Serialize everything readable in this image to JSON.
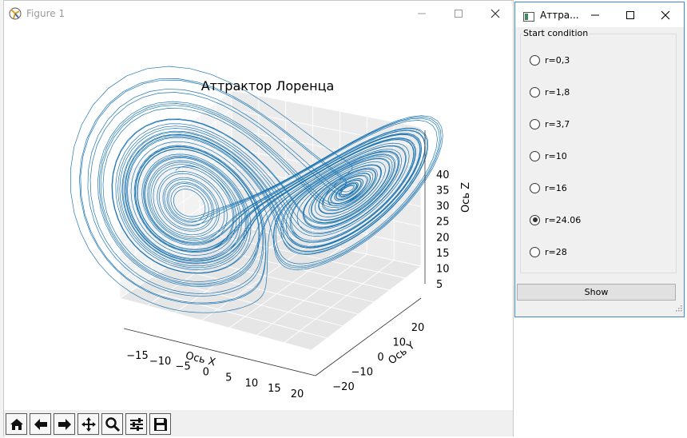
{
  "figure_window": {
    "title": "Figure 1",
    "controls": [
      "minimize-icon",
      "maximize-icon",
      "close-icon"
    ]
  },
  "plot": {
    "title": "Аттрактор Лоренца",
    "xlabel": "Ось X",
    "ylabel": "Ось Y",
    "zlabel": "Ось Z",
    "x_ticks": [
      "−15",
      "−10",
      "−5",
      "0",
      "5",
      "10",
      "15",
      "20"
    ],
    "y_ticks": [
      "20",
      "10",
      "0",
      "−10",
      "−20"
    ],
    "z_ticks": [
      "40",
      "35",
      "30",
      "25",
      "20",
      "15",
      "10",
      "5"
    ],
    "line_color": "#1f77b4"
  },
  "toolbar": {
    "buttons": [
      "home-icon",
      "back-icon",
      "forward-icon",
      "pan-icon",
      "zoom-icon",
      "configure-icon",
      "save-icon"
    ]
  },
  "control_window": {
    "title": "Аттра...",
    "group_label": "Start condition",
    "options": [
      {
        "label": "r=0,3",
        "checked": false
      },
      {
        "label": "r=1,8",
        "checked": false
      },
      {
        "label": "r=3,7",
        "checked": false
      },
      {
        "label": "r=10",
        "checked": false
      },
      {
        "label": "r=16",
        "checked": false
      },
      {
        "label": "r=24.06",
        "checked": true
      },
      {
        "label": "r=28",
        "checked": false
      }
    ],
    "show_button": "Show"
  }
}
